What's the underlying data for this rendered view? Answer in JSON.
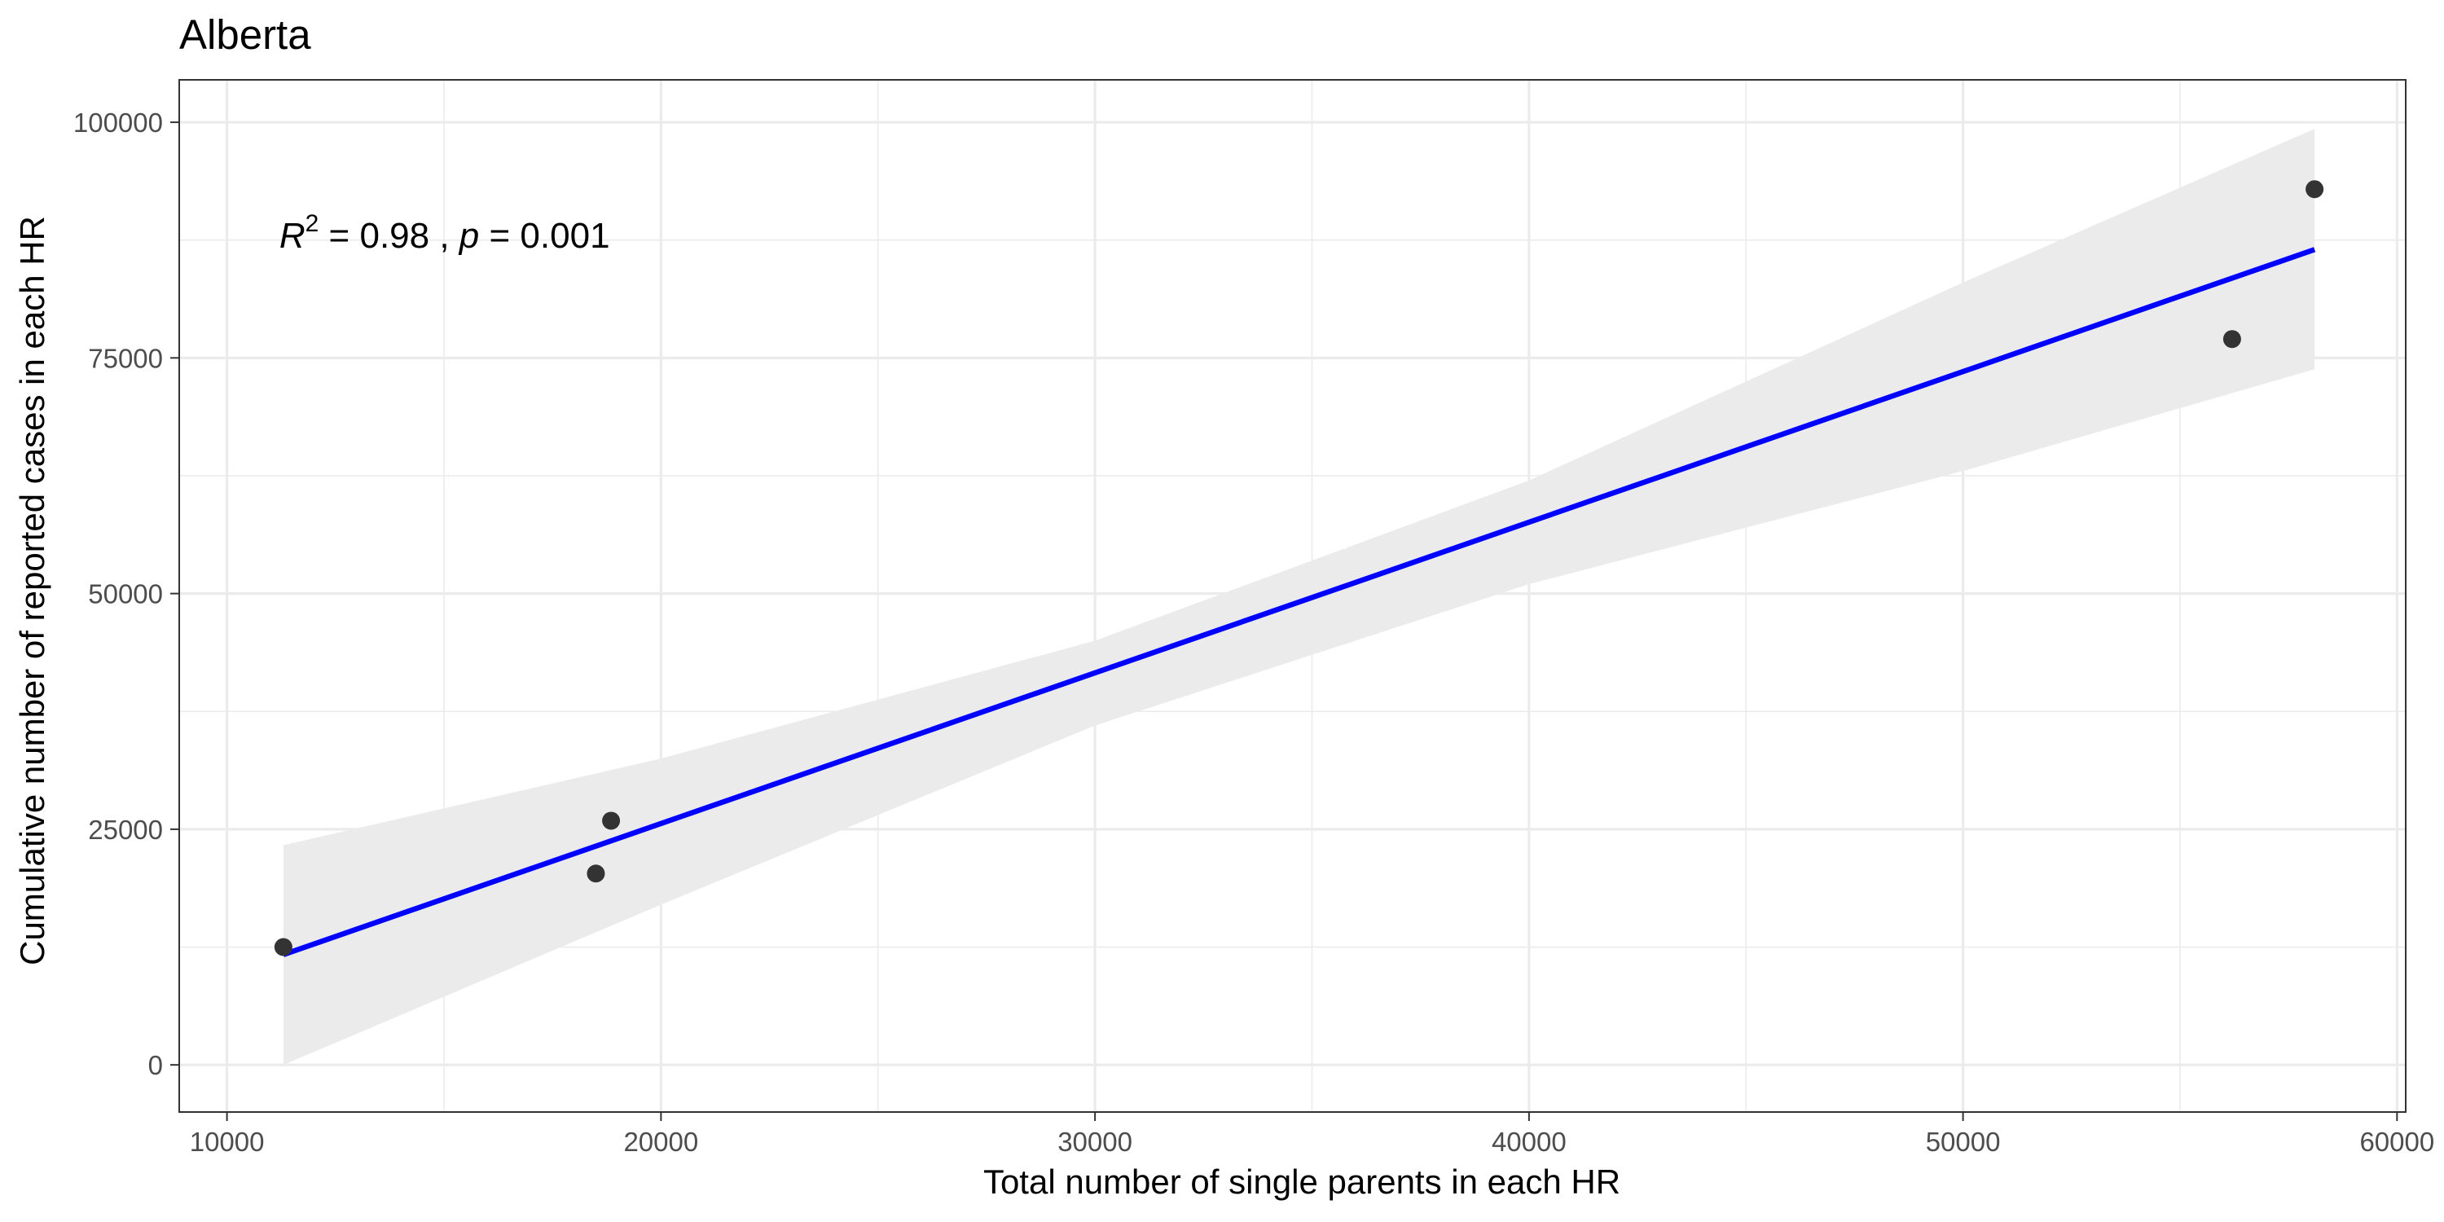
{
  "chart_data": {
    "type": "scatter",
    "title": "Alberta",
    "xlabel": "Total number of single parents in each HR",
    "ylabel": "Cumulative number of reported cases in each HR",
    "xlim": [
      8900,
      60200
    ],
    "ylim": [
      -5000,
      104500
    ],
    "x_ticks": [
      10000,
      20000,
      30000,
      40000,
      50000,
      60000
    ],
    "x_tick_labels": [
      "10000",
      "20000",
      "30000",
      "40000",
      "50000",
      "60000"
    ],
    "y_ticks": [
      0,
      25000,
      50000,
      75000,
      100000
    ],
    "y_tick_labels": [
      "0",
      "25000",
      "50000",
      "75000",
      "100000"
    ],
    "grid": true,
    "points": {
      "x": [
        11300,
        18500,
        18850,
        56200,
        58100
      ],
      "y": [
        12500,
        20300,
        25900,
        77000,
        92900
      ],
      "color": "#333333"
    },
    "fit_line": {
      "x": [
        11300,
        58100
      ],
      "y": [
        11700,
        86500
      ],
      "color": "#0000ff"
    },
    "confidence_band": {
      "x": [
        11300,
        20000,
        30000,
        40000,
        50000,
        58100
      ],
      "upper": [
        23300,
        32500,
        45000,
        62000,
        83000,
        99300
      ],
      "lower": [
        0,
        17000,
        36000,
        51000,
        63000,
        73800
      ],
      "color": "#ebebeb"
    },
    "annotation": {
      "r_symbol": "R",
      "superscript": "2",
      "r_value_text": " = 0.98 , ",
      "p_symbol": "p",
      "p_value_text": " = 0.001",
      "x": 11300,
      "y": 88000
    }
  }
}
